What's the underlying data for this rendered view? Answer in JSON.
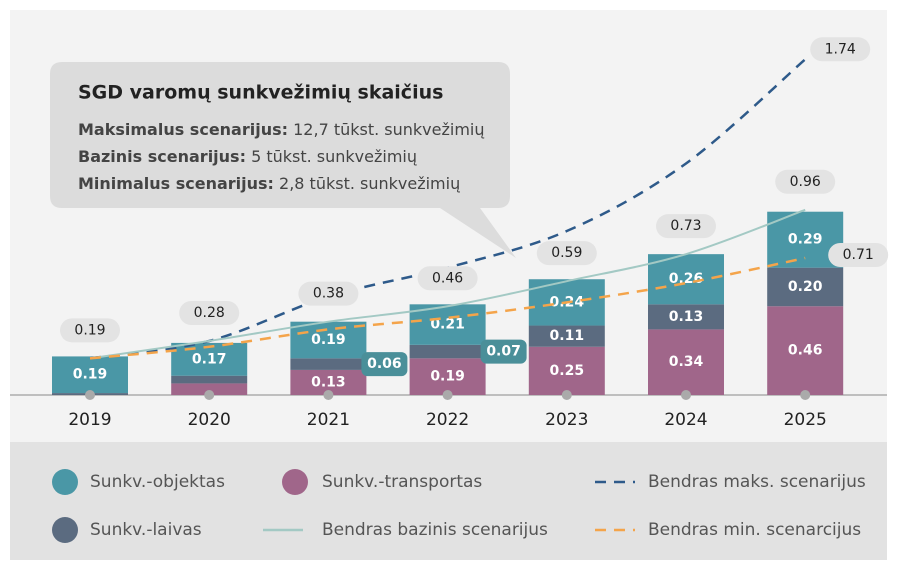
{
  "chart_data": {
    "type": "bar",
    "stacked": true,
    "categories": [
      "2019",
      "2020",
      "2021",
      "2022",
      "2023",
      "2024",
      "2025"
    ],
    "ylim": [
      0,
      1.84
    ],
    "series": [
      {
        "name": "Sunkv.-transportas",
        "color": "#a0668a",
        "values": [
          0,
          0.06,
          0.13,
          0.19,
          0.25,
          0.34,
          0.46
        ],
        "value_labels": [
          null,
          null,
          "0.13",
          "0.19",
          "0.25",
          "0.34",
          "0.46"
        ]
      },
      {
        "name": "Sunkv.-laivas",
        "color": "#5b6b80",
        "values": [
          0.01,
          0.04,
          0.06,
          0.07,
          0.11,
          0.13,
          0.2
        ],
        "value_labels": [
          null,
          null,
          "0.06",
          "0.07",
          "0.11",
          "0.13",
          "0.20"
        ]
      },
      {
        "name": "Sunkv.-objektas",
        "color": "#4a97a6",
        "values": [
          0.19,
          0.17,
          0.19,
          0.21,
          0.24,
          0.26,
          0.29
        ],
        "value_labels": [
          "0.19",
          "0.17",
          "0.19",
          "0.21",
          "0.24",
          "0.26",
          "0.29"
        ]
      }
    ],
    "lines": [
      {
        "name": "Bendras maks. scenarijus",
        "color": "#2e5a8a",
        "dashed": true,
        "values": [
          0.19,
          0.28,
          0.51,
          0.66,
          0.85,
          1.2,
          1.74
        ],
        "value_labels": [
          null,
          null,
          null,
          null,
          null,
          null,
          "1.74"
        ]
      },
      {
        "name": "Bendras bazinis scenarijus",
        "color": "#a3c9c4",
        "dashed": false,
        "values": [
          0.19,
          0.28,
          0.38,
          0.46,
          0.59,
          0.73,
          0.96
        ],
        "value_labels": [
          "0.19",
          "0.28",
          "0.38",
          "0.46",
          "0.59",
          "0.73",
          "0.96"
        ]
      },
      {
        "name": "Bendras min. scenarcijus",
        "color": "#f4a44a",
        "dashed": true,
        "values": [
          0.19,
          0.25,
          0.34,
          0.4,
          0.48,
          0.58,
          0.71
        ],
        "value_labels": [
          null,
          null,
          null,
          null,
          null,
          null,
          "0.71"
        ]
      }
    ],
    "annotation": {
      "title": "SGD varomų sunkvežimių skaičius",
      "lines": [
        {
          "label": "Maksimalus scenarijus:",
          "text": "12,7 tūkst. sunkvežimių"
        },
        {
          "label": "Bazinis scenarijus:",
          "text": "5 tūkst. sunkvežimių"
        },
        {
          "label": "Minimalus scenarijus:",
          "text": "2,8 tūkst. sunkvežimių"
        }
      ]
    }
  }
}
